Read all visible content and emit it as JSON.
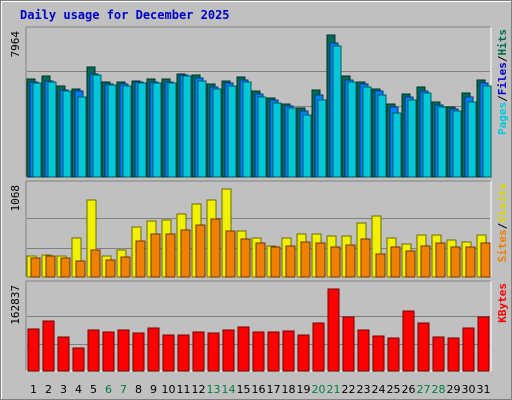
{
  "page": {
    "title": "Daily usage for December 2025"
  },
  "colors": {
    "hits": "#006c54",
    "files": "#0080ff",
    "pages": "#00c8d8",
    "visits": "#f0f000",
    "sites": "#f08000",
    "kbytes": "#ff0000",
    "label_hits": "#006c54",
    "label_files": "#0000cc",
    "label_pages": "#00c8d8",
    "label_sep": "#000000",
    "label_visits": "#d8d800",
    "label_sites": "#f08000",
    "label_kbytes": "#ff0000",
    "weekday": "#000000",
    "weekend": "#008040"
  },
  "chart_data": [
    {
      "type": "bar",
      "categories": [
        "1",
        "2",
        "3",
        "4",
        "5",
        "6",
        "7",
        "8",
        "9",
        "10",
        "11",
        "12",
        "13",
        "14",
        "15",
        "16",
        "17",
        "18",
        "19",
        "20",
        "21",
        "22",
        "23",
        "24",
        "25",
        "26",
        "27",
        "28",
        "29",
        "30",
        "31"
      ],
      "weekend_days": [
        "6",
        "7",
        "13",
        "14",
        "20",
        "21",
        "27",
        "28"
      ],
      "y_tick_label": "7964",
      "ylim": [
        0,
        7964
      ],
      "series": [
        {
          "name": "Hits",
          "values": [
            5500,
            5650,
            5100,
            4950,
            6150,
            5300,
            5350,
            5400,
            5500,
            5500,
            5800,
            5700,
            5200,
            5400,
            5600,
            4800,
            4450,
            4100,
            3850,
            4900,
            7964,
            5650,
            5350,
            4950,
            4100,
            4650,
            5050,
            4200,
            3950,
            4700,
            5450
          ]
        },
        {
          "name": "Files",
          "values": [
            5350,
            5400,
            4900,
            4800,
            5800,
            5200,
            5200,
            5300,
            5350,
            5350,
            5700,
            5550,
            5050,
            5250,
            5450,
            4650,
            4300,
            4000,
            3700,
            4600,
            7500,
            5450,
            5200,
            4800,
            3900,
            4500,
            4850,
            4050,
            3800,
            4500,
            5250
          ]
        },
        {
          "name": "Pages",
          "values": [
            5250,
            5350,
            4800,
            4500,
            5700,
            5150,
            5100,
            5250,
            5250,
            5250,
            5650,
            5400,
            4950,
            5100,
            5300,
            4500,
            4150,
            3850,
            3500,
            4300,
            7350,
            5300,
            5050,
            4600,
            3600,
            4300,
            4700,
            3900,
            3700,
            4200,
            5100
          ]
        }
      ],
      "legend_labels": [
        "Pages",
        "Files",
        "Hits"
      ]
    },
    {
      "type": "bar",
      "categories": [
        "1",
        "2",
        "3",
        "4",
        "5",
        "6",
        "7",
        "8",
        "9",
        "10",
        "11",
        "12",
        "13",
        "14",
        "15",
        "16",
        "17",
        "18",
        "19",
        "20",
        "21",
        "22",
        "23",
        "24",
        "25",
        "26",
        "27",
        "28",
        "29",
        "30",
        "31"
      ],
      "y_tick_label": "1068",
      "ylim": [
        0,
        1068
      ],
      "series": [
        {
          "name": "Visits",
          "values": [
            260,
            270,
            260,
            470,
            940,
            260,
            330,
            610,
            680,
            690,
            770,
            880,
            940,
            1068,
            560,
            470,
            380,
            470,
            520,
            520,
            500,
            500,
            650,
            740,
            470,
            400,
            510,
            510,
            450,
            430,
            510
          ]
        },
        {
          "name": "Sites",
          "values": [
            230,
            250,
            230,
            200,
            330,
            210,
            240,
            440,
            520,
            520,
            570,
            630,
            700,
            560,
            460,
            410,
            360,
            380,
            420,
            410,
            370,
            390,
            460,
            280,
            370,
            310,
            380,
            410,
            370,
            370,
            410
          ]
        }
      ],
      "legend_labels": [
        "Sites",
        "Visits"
      ]
    },
    {
      "type": "bar",
      "categories": [
        "1",
        "2",
        "3",
        "4",
        "5",
        "6",
        "7",
        "8",
        "9",
        "10",
        "11",
        "12",
        "13",
        "14",
        "15",
        "16",
        "17",
        "18",
        "19",
        "20",
        "21",
        "22",
        "23",
        "24",
        "25",
        "26",
        "27",
        "28",
        "29",
        "30",
        "31"
      ],
      "y_tick_label": "162837",
      "ylim": [
        0,
        162837
      ],
      "series": [
        {
          "name": "KBytes",
          "values": [
            83000,
            99000,
            68000,
            45000,
            82000,
            77000,
            81000,
            75000,
            86000,
            72000,
            72000,
            78000,
            76000,
            82000,
            88000,
            77000,
            77000,
            79000,
            72000,
            96000,
            162837,
            108000,
            82000,
            70000,
            66000,
            119000,
            95000,
            67000,
            65000,
            85000,
            108000
          ]
        }
      ],
      "legend_labels": [
        "KBytes"
      ]
    }
  ]
}
